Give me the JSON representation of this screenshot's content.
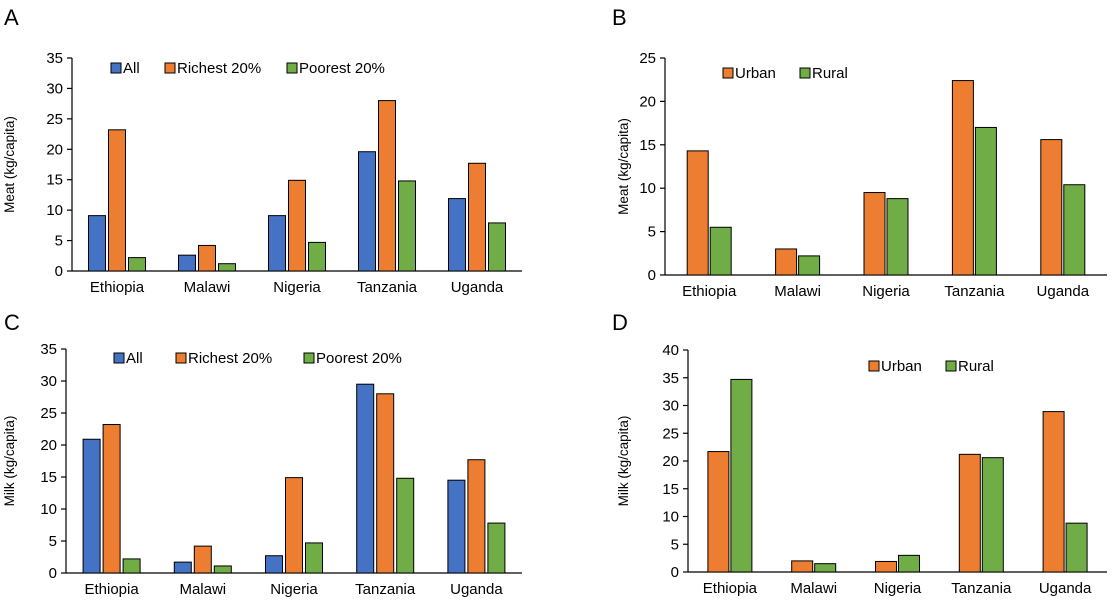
{
  "colors": {
    "All": "#4472C4",
    "Richest 20%": "#ED7D31",
    "Poorest 20%": "#70AD47",
    "Urban": "#ED7D31",
    "Rural": "#70AD47"
  },
  "chart_data": [
    {
      "panel": "A",
      "type": "bar",
      "ylabel": "Meat (kg/capita)",
      "ylim": [
        0,
        35
      ],
      "yticks": [
        0,
        5,
        10,
        15,
        20,
        25,
        30,
        35
      ],
      "legend": "top-left",
      "categories": [
        "Ethiopia",
        "Malawi",
        "Nigeria",
        "Tanzania",
        "Uganda"
      ],
      "series": [
        {
          "name": "All",
          "values": [
            9.1,
            2.6,
            9.1,
            19.6,
            11.9
          ]
        },
        {
          "name": "Richest 20%",
          "values": [
            23.2,
            4.2,
            14.9,
            28.0,
            17.7
          ]
        },
        {
          "name": "Poorest 20%",
          "values": [
            2.2,
            1.2,
            4.7,
            14.8,
            7.9
          ]
        }
      ]
    },
    {
      "panel": "B",
      "type": "bar",
      "ylabel": "Meat  (kg/capita)",
      "ylim": [
        0,
        25
      ],
      "yticks": [
        0,
        5,
        10,
        15,
        20,
        25
      ],
      "legend": "top-left",
      "categories": [
        "Ethiopia",
        "Malawi",
        "Nigeria",
        "Tanzania",
        "Uganda"
      ],
      "series": [
        {
          "name": "Urban",
          "values": [
            14.3,
            3.0,
            9.5,
            22.4,
            15.6
          ]
        },
        {
          "name": "Rural",
          "values": [
            5.5,
            2.2,
            8.8,
            17.0,
            10.4
          ]
        }
      ]
    },
    {
      "panel": "C",
      "type": "bar",
      "ylabel": "Milk (kg/capita)",
      "ylim": [
        0,
        35
      ],
      "yticks": [
        0,
        5,
        10,
        15,
        20,
        25,
        30,
        35
      ],
      "legend": "top-left",
      "categories": [
        "Ethiopia",
        "Malawi",
        "Nigeria",
        "Tanzania",
        "Uganda"
      ],
      "series": [
        {
          "name": "All",
          "values": [
            20.9,
            1.7,
            2.7,
            29.5,
            14.5
          ]
        },
        {
          "name": "Richest 20%",
          "values": [
            23.2,
            4.2,
            14.9,
            28.0,
            17.7
          ]
        },
        {
          "name": "Poorest 20%",
          "values": [
            2.2,
            1.1,
            4.7,
            14.8,
            7.8
          ]
        }
      ]
    },
    {
      "panel": "D",
      "type": "bar",
      "ylabel": "Milk (kg/capita)",
      "ylim": [
        0,
        40
      ],
      "yticks": [
        0,
        5,
        10,
        15,
        20,
        25,
        30,
        35,
        40
      ],
      "legend": "top-center",
      "categories": [
        "Ethiopia",
        "Malawi",
        "Nigeria",
        "Tanzania",
        "Uganda"
      ],
      "series": [
        {
          "name": "Urban",
          "values": [
            21.7,
            2.0,
            1.9,
            21.2,
            28.9
          ]
        },
        {
          "name": "Rural",
          "values": [
            34.7,
            1.5,
            3.0,
            20.6,
            8.8
          ]
        }
      ]
    }
  ]
}
